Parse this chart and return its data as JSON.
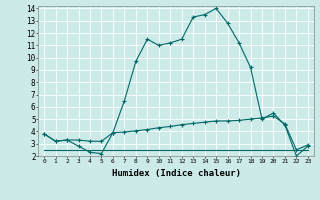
{
  "xlabel": "Humidex (Indice chaleur)",
  "xlim": [
    -0.5,
    23.5
  ],
  "ylim": [
    2,
    14.2
  ],
  "xticks": [
    0,
    1,
    2,
    3,
    4,
    5,
    6,
    7,
    8,
    9,
    10,
    11,
    12,
    13,
    14,
    15,
    16,
    17,
    18,
    19,
    20,
    21,
    22,
    23
  ],
  "yticks": [
    2,
    3,
    4,
    5,
    6,
    7,
    8,
    9,
    10,
    11,
    12,
    13,
    14
  ],
  "background_color": "#cceae8",
  "line_color": "#006868",
  "line1_x": [
    0,
    1,
    2,
    3,
    4,
    5,
    6,
    7,
    8,
    9,
    10,
    11,
    12,
    13,
    14,
    15,
    16,
    17,
    18,
    19,
    20,
    21,
    22,
    23
  ],
  "line1_y": [
    3.8,
    3.2,
    3.3,
    2.8,
    2.3,
    2.2,
    3.9,
    6.5,
    9.7,
    11.5,
    11.0,
    11.2,
    11.5,
    13.3,
    13.5,
    14.0,
    12.8,
    11.2,
    9.2,
    5.0,
    5.5,
    4.5,
    2.0,
    2.8
  ],
  "line2_x": [
    0,
    1,
    2,
    3,
    4,
    5,
    6,
    7,
    8,
    9,
    10,
    11,
    12,
    13,
    14,
    15,
    16,
    17,
    18,
    19,
    20,
    21,
    22,
    23
  ],
  "line2_y": [
    3.8,
    3.2,
    3.3,
    3.3,
    3.2,
    3.2,
    3.9,
    3.95,
    4.05,
    4.15,
    4.3,
    4.4,
    4.55,
    4.65,
    4.75,
    4.85,
    4.85,
    4.9,
    5.0,
    5.1,
    5.25,
    4.6,
    2.5,
    2.9
  ],
  "line3_x": [
    0,
    1,
    2,
    3,
    4,
    5,
    6,
    7,
    8,
    9,
    10,
    11,
    12,
    13,
    14,
    15,
    16,
    17,
    18,
    19,
    20,
    21,
    22,
    23
  ],
  "line3_y": [
    2.5,
    2.5,
    2.5,
    2.5,
    2.5,
    2.5,
    2.5,
    2.5,
    2.5,
    2.5,
    2.5,
    2.5,
    2.5,
    2.5,
    2.5,
    2.5,
    2.5,
    2.5,
    2.5,
    2.5,
    2.5,
    2.5,
    2.5,
    2.5
  ]
}
